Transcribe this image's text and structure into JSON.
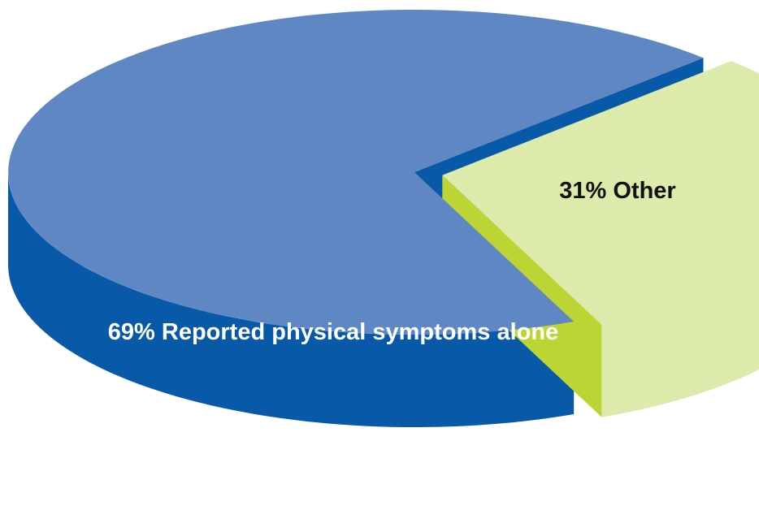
{
  "chart_data": {
    "type": "pie",
    "title": "",
    "categories": [
      "Reported physical symptoms alone",
      "Other"
    ],
    "values": [
      69,
      31
    ],
    "unit": "%",
    "labels": [
      "69% Reported physical symptoms alone",
      "31% Other"
    ],
    "exploded": [
      false,
      true
    ],
    "style": "3d",
    "legend": "none",
    "colors": {
      "Reported physical symptoms alone": {
        "top": "#5e87c4",
        "side": "#0859a8"
      },
      "Other": {
        "top": "#dcebab",
        "side": "#bdd534"
      }
    },
    "label_colors": [
      "#ffffff",
      "#111111"
    ]
  }
}
